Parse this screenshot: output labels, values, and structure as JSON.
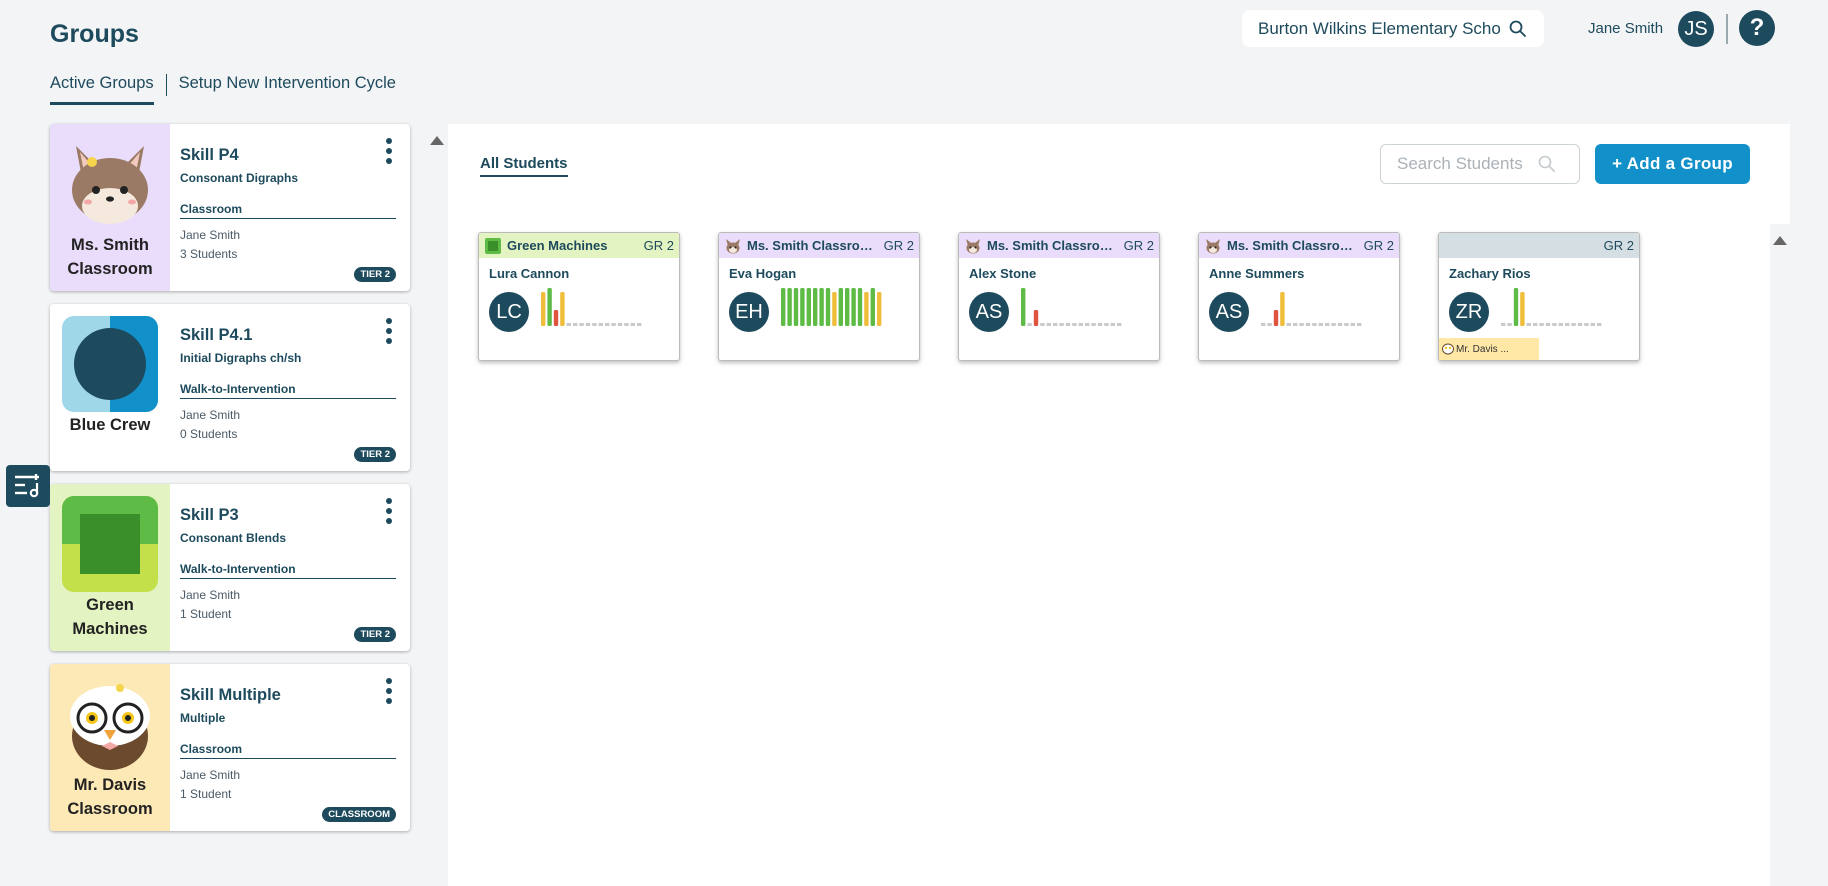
{
  "header": {
    "title": "Groups",
    "school": "Burton Wilkins Elementary School",
    "user_name": "Jane Smith",
    "user_initials": "JS",
    "help_label": "?"
  },
  "tabs": [
    {
      "label": "Active Groups",
      "active": true
    },
    {
      "label": "Setup New Intervention Cycle",
      "active": false
    }
  ],
  "groups": [
    {
      "name": "Ms. Smith Classroom",
      "skill": "Skill P4",
      "skill_desc": "Consonant Digraphs",
      "type": "Classroom",
      "teacher": "Jane Smith",
      "count": "3 Students",
      "badge": "TIER 2",
      "bg": "#e9ddfb",
      "icon": "fox-mascot-icon"
    },
    {
      "name": "Blue Crew",
      "skill": "Skill P4.1",
      "skill_desc": "Initial Digraphs ch/sh",
      "type": "Walk-to-Intervention",
      "teacher": "Jane Smith",
      "count": "0 Students",
      "badge": "TIER 2",
      "bg": "#ffffff",
      "icon": "blue-circle-icon"
    },
    {
      "name": "Green Machines",
      "skill": "Skill P3",
      "skill_desc": "Consonant Blends",
      "type": "Walk-to-Intervention",
      "teacher": "Jane Smith",
      "count": "1 Student",
      "badge": "TIER 2",
      "bg": "#e3f3c1",
      "icon": "green-square-icon"
    },
    {
      "name": "Mr. Davis Classroom",
      "skill": "Skill Multiple",
      "skill_desc": "Multiple",
      "type": "Classroom",
      "teacher": "Jane Smith",
      "count": "1 Student",
      "badge": "CLASSROOM",
      "bg": "#fde9b6",
      "icon": "owl-mascot-icon"
    }
  ],
  "main": {
    "all_students_label": "All Students",
    "search_placeholder": "Search Students",
    "add_group_label": "+ Add a Group"
  },
  "students": [
    {
      "group": "Green Machines",
      "grade": "GR 2",
      "name": "Lura Cannon",
      "initials": "LC",
      "header_bg": "#e3f3c1",
      "group_icon": "green-square-icon",
      "tag": "",
      "scores": [
        "y",
        "g",
        "r",
        "y",
        "x",
        "x",
        "x",
        "x",
        "x",
        "x",
        "x",
        "x",
        "x",
        "x",
        "x",
        "x"
      ]
    },
    {
      "group": "Ms. Smith Classroom",
      "grade": "GR 2",
      "name": "Eva Hogan",
      "initials": "EH",
      "header_bg": "#e9ddfb",
      "group_icon": "fox-mascot-icon",
      "tag": "",
      "scores": [
        "g",
        "g",
        "g",
        "g",
        "g",
        "g",
        "g",
        "g",
        "y",
        "g",
        "g",
        "g",
        "g",
        "y",
        "g",
        "y"
      ]
    },
    {
      "group": "Ms. Smith Classroom",
      "grade": "GR 2",
      "name": "Alex Stone",
      "initials": "AS",
      "header_bg": "#e9ddfb",
      "group_icon": "fox-mascot-icon",
      "tag": "",
      "scores": [
        "g",
        "x",
        "r",
        "x",
        "x",
        "x",
        "x",
        "x",
        "x",
        "x",
        "x",
        "x",
        "x",
        "x",
        "x",
        "x"
      ]
    },
    {
      "group": "Ms. Smith Classroom",
      "grade": "GR 2",
      "name": "Anne Summers",
      "initials": "AS",
      "header_bg": "#e9ddfb",
      "group_icon": "fox-mascot-icon",
      "tag": "",
      "scores": [
        "x",
        "x",
        "r",
        "y",
        "x",
        "x",
        "x",
        "x",
        "x",
        "x",
        "x",
        "x",
        "x",
        "x",
        "x",
        "x"
      ]
    },
    {
      "group": "",
      "grade": "GR 2",
      "name": "Zachary Rios",
      "initials": "ZR",
      "header_bg": "#d5dfe3",
      "group_icon": "",
      "tag": "Mr. Davis ...",
      "scores": [
        "x",
        "x",
        "g",
        "y",
        "x",
        "x",
        "x",
        "x",
        "x",
        "x",
        "x",
        "x",
        "x",
        "x",
        "x",
        "x"
      ]
    }
  ],
  "colors": {
    "primary": "#1d4a5c",
    "accent": "#1290c9",
    "green": "#5dbb46",
    "yellow": "#f0bd3a",
    "red": "#e0533e",
    "gray": "#c7cbce"
  }
}
